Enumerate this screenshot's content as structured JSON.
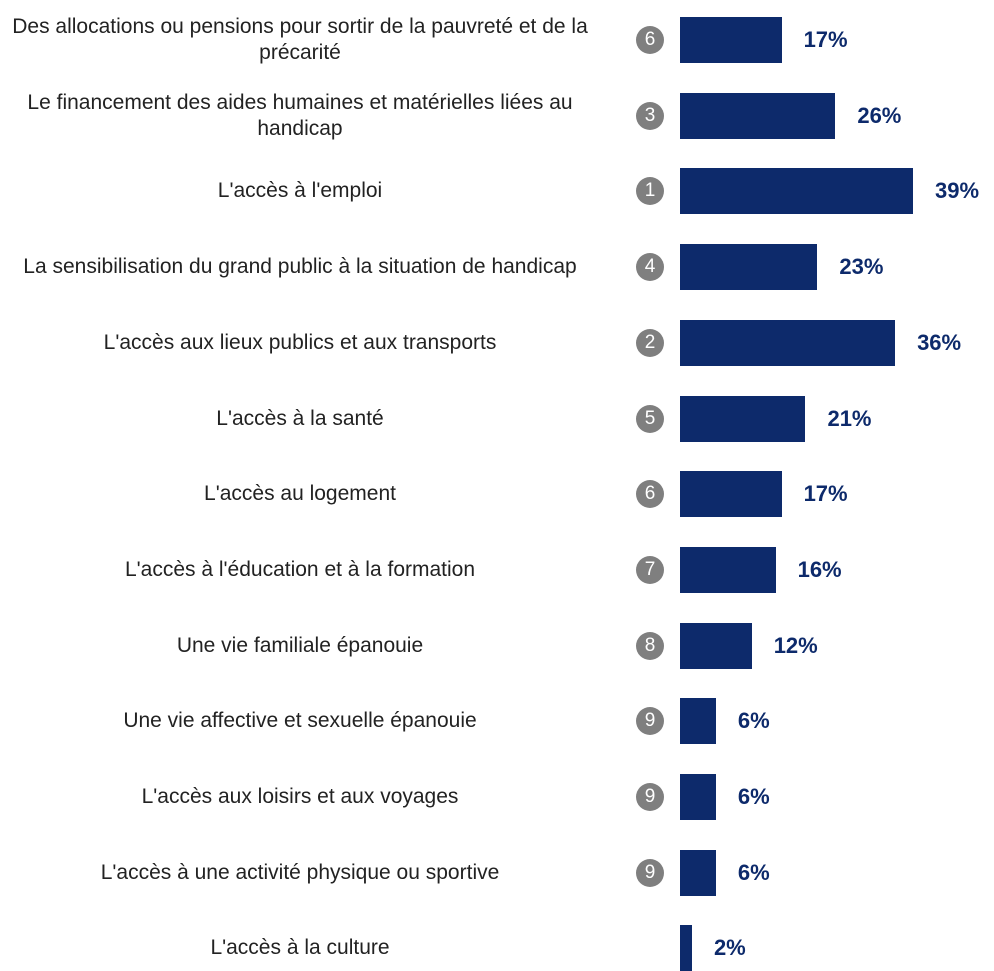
{
  "chart_data": {
    "type": "bar",
    "orientation": "horizontal",
    "color": "#0d2a6b",
    "categories": [
      "Des allocations ou pensions pour sortir de la pauvreté et de la précarité",
      "Le financement des aides humaines et matérielles liées au handicap",
      "L'accès à l'emploi",
      "La sensibilisation du grand public à la situation de handicap",
      "L'accès aux lieux publics et aux transports",
      "L'accès à la santé",
      "L'accès au logement",
      "L'accès à l'éducation et à la formation",
      "Une vie familiale épanouie",
      "Une vie affective et sexuelle épanouie",
      "L'accès aux loisirs et aux voyages",
      "L'accès à une activité physique ou sportive",
      "L'accès à la culture"
    ],
    "values": [
      17,
      26,
      39,
      23,
      36,
      21,
      17,
      16,
      12,
      6,
      6,
      6,
      2
    ],
    "value_labels": [
      "17%",
      "26%",
      "39%",
      "23%",
      "36%",
      "21%",
      "17%",
      "16%",
      "12%",
      "6%",
      "6%",
      "6%",
      "2%"
    ],
    "ranks": [
      6,
      3,
      1,
      4,
      2,
      5,
      6,
      7,
      8,
      9,
      9,
      9,
      null
    ]
  }
}
